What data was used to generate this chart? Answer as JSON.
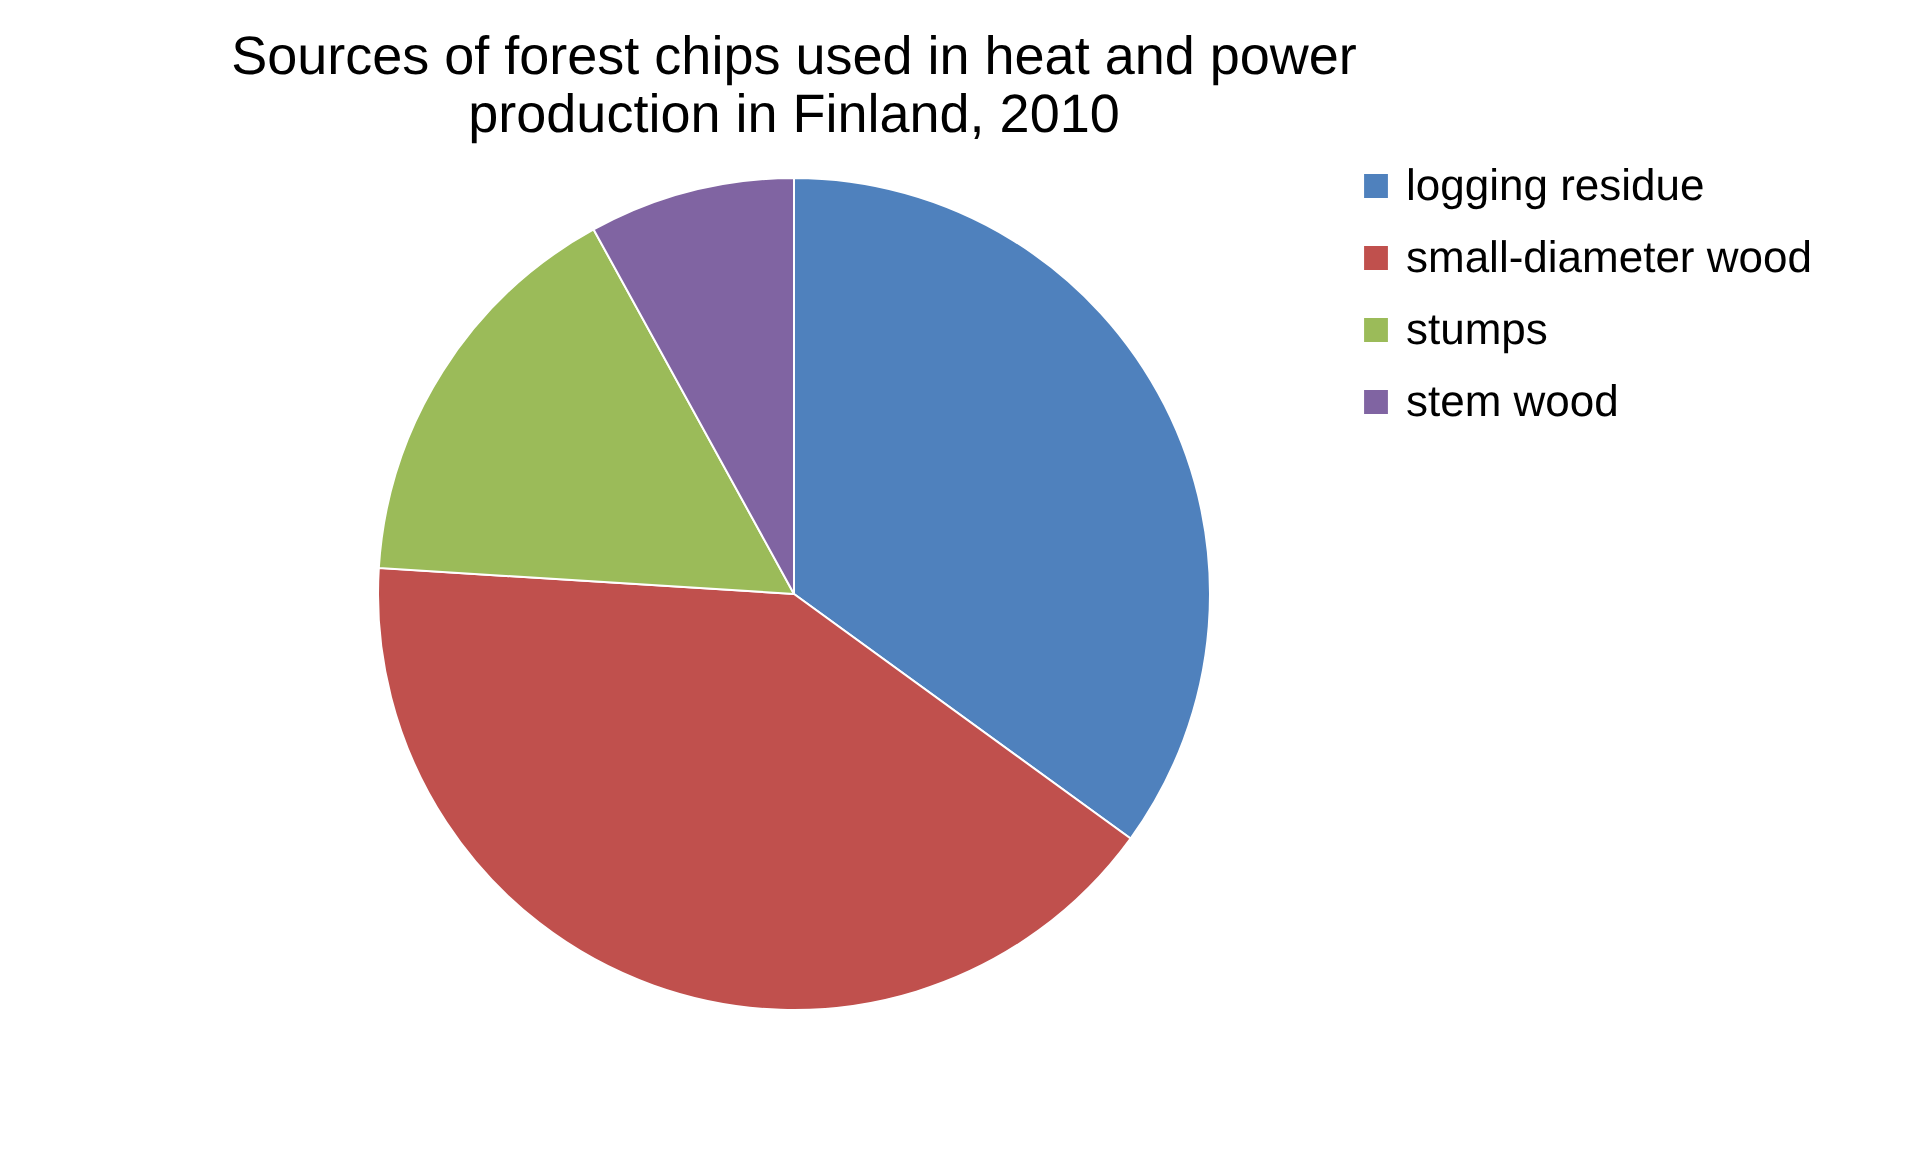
{
  "chart_data": {
    "type": "pie",
    "title": "Sources of forest chips used in heat and power production in Finland, 2010",
    "categories": [
      "logging residue",
      "small-diameter wood",
      "stumps",
      "stem wood"
    ],
    "values": [
      35,
      41,
      16,
      8
    ],
    "colors": [
      "#4f81bd",
      "#c0504d",
      "#9bbb59",
      "#8064a2"
    ],
    "legend": "right"
  }
}
